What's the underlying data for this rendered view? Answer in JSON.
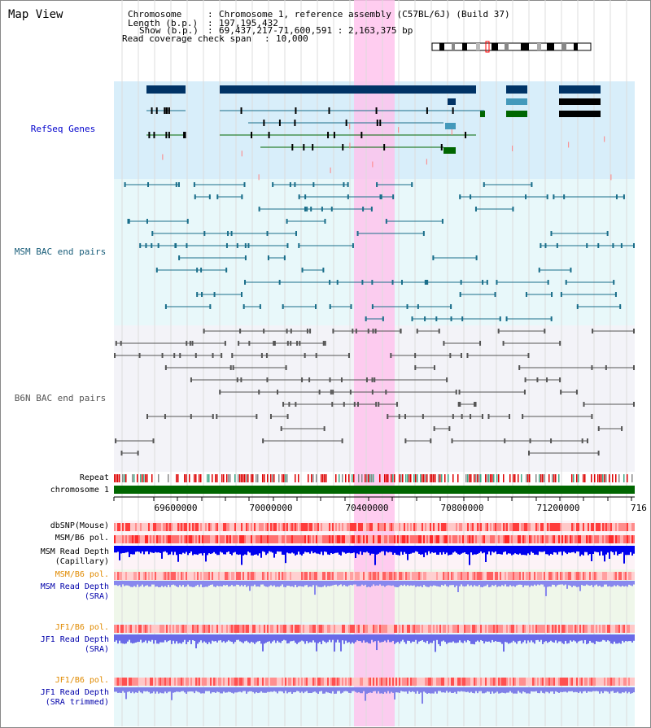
{
  "title": "Map View",
  "info": {
    "chromosome_key": "Chromosome",
    "chromosome_val": "Chromosome 1, reference assembly (C57BL/6J) (Build 37)",
    "length_key": "Length (b.p.)",
    "length_val": "197,195,432",
    "show_key": "Show (b.p.)",
    "show_val": "69,437,217-71,600,591 : 2,163,375 bp",
    "read_key": "Read coverage check span",
    "read_val": "10,000"
  },
  "tracks": {
    "refseq": "RefSeq Genes",
    "msm_bac": "MSM BAC end pairs",
    "b6n_bac": "B6N BAC end pairs",
    "repeat": "Repeat",
    "chromosome": "chromosome 1",
    "dbsnp": "dbSNP(Mouse)",
    "msm_b6_pol": "MSM/B6 pol.",
    "msm_read_cap_1": "MSM Read Depth",
    "msm_read_cap_2": "(Capillary)",
    "msm_b6_pol2": "MSM/B6 pol.",
    "msm_read_sra_1": "MSM Read Depth",
    "msm_read_sra_2": "(SRA)",
    "jf1_b6_pol": "JF1/B6 pol.",
    "jf1_read_sra_1": "JF1 Read Depth",
    "jf1_read_sra_2": "(SRA)",
    "jf1_b6_pol2": "JF1/B6 pol.",
    "jf1_read_trim_1": "JF1 Read Depth",
    "jf1_read_trim_2": "(SRA trimmed)"
  },
  "axis_ticks": [
    "69600000",
    "70000000",
    "70400000",
    "70800000",
    "71200000",
    "716"
  ],
  "colors": {
    "refseq_label": "#0000cc",
    "msm_label": "#1a5e7a",
    "b6n_label": "#555555",
    "orange_label": "#e08a00",
    "blue_label": "#0000aa",
    "highlight": "#ffc0ec",
    "chromosome_bar": "#006600"
  }
}
